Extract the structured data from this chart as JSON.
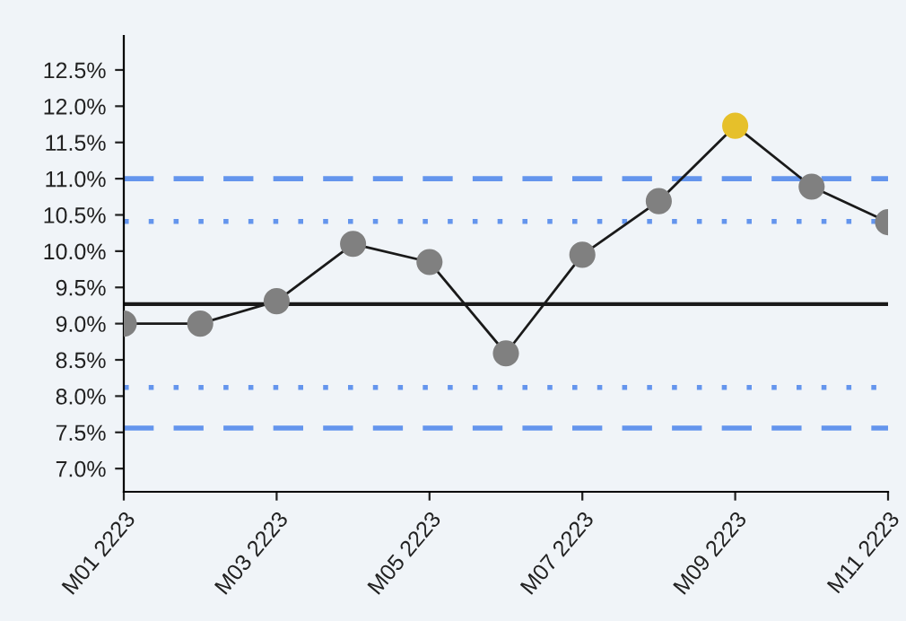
{
  "chart_data": {
    "type": "line",
    "categories": [
      "M01 2223",
      null,
      "M03 2223",
      null,
      "M05 2223",
      null,
      "M07 2223",
      null,
      "M09 2223",
      null,
      "M11 2223"
    ],
    "series": [
      {
        "color": "#1a1a1a",
        "colors": [
          "#808080",
          "#808080",
          "#808080",
          "#808080",
          "#808080",
          "#808080",
          "#808080",
          "#808080",
          "#e6c02a",
          "#808080",
          "#808080"
        ],
        "values": [
          9.0,
          9.0,
          9.31,
          10.1,
          9.85,
          8.59,
          9.95,
          10.69,
          11.73,
          10.89,
          10.4
        ]
      }
    ],
    "marker": "circle",
    "ylim": [
      6.68,
      12.97
    ],
    "yticks": [
      {
        "value": 7.0,
        "label": "7.0%"
      },
      {
        "value": 7.5,
        "label": "7.5%"
      },
      {
        "value": 8.0,
        "label": "8.0%"
      },
      {
        "value": 8.5,
        "label": "8.5%"
      },
      {
        "value": 9.0,
        "label": "9.0%"
      },
      {
        "value": 9.5,
        "label": "9.5%"
      },
      {
        "value": 10.0,
        "label": "10.0%"
      },
      {
        "value": 10.5,
        "label": "10.5%"
      },
      {
        "value": 11.0,
        "label": "11.0%"
      },
      {
        "value": 11.5,
        "label": "11.5%"
      },
      {
        "value": 12.0,
        "label": "12.0%"
      },
      {
        "value": 12.5,
        "label": "12.5%"
      }
    ],
    "ref_lines": [
      {
        "axis": "y",
        "value": 9.27,
        "color": "#1a1a1a",
        "line_style": "solid"
      },
      {
        "axis": "y",
        "value": 10.41,
        "color": "#6495ed",
        "line_style": "dotted"
      },
      {
        "axis": "y",
        "value": 8.12,
        "color": "#6495ed",
        "line_style": "dotted"
      },
      {
        "axis": "y",
        "value": 11.0,
        "color": "#6495ed",
        "line_style": "dashed"
      },
      {
        "axis": "y",
        "value": 7.56,
        "color": "#6495ed",
        "line_style": "dashed"
      }
    ],
    "grid": false,
    "legend": false
  }
}
